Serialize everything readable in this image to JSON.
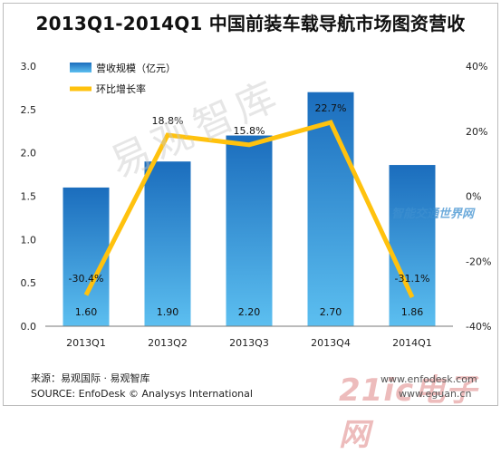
{
  "title": "2013Q1-2014Q1 中国前装车载导航市场图资营收",
  "chart_data": {
    "type": "bar",
    "categories": [
      "2013Q1",
      "2013Q2",
      "2013Q3",
      "2013Q4",
      "2014Q1"
    ],
    "series": [
      {
        "name": "营收规模（亿元）",
        "type": "bar",
        "axis": "left",
        "values": [
          1.6,
          1.9,
          2.2,
          2.7,
          1.86
        ],
        "labels": [
          "1.60",
          "1.90",
          "2.20",
          "2.70",
          "1.86"
        ]
      },
      {
        "name": "环比增长率",
        "type": "line",
        "axis": "right",
        "values": [
          -30.4,
          18.8,
          15.8,
          22.7,
          -31.1
        ],
        "labels": [
          "-30.4%",
          "18.8%",
          "15.8%",
          "22.7%",
          "-31.1%"
        ]
      }
    ],
    "y_left": {
      "min": 0,
      "max": 3.0,
      "ticks": [
        "0.0",
        "0.5",
        "1.0",
        "1.5",
        "2.0",
        "2.5",
        "3.0"
      ]
    },
    "y_right": {
      "min": -40,
      "max": 40,
      "ticks": [
        "-40%",
        "-20%",
        "0%",
        "20%",
        "40%"
      ]
    },
    "legend_position": "top-left",
    "colors": {
      "bar_top": "#1b6dbd",
      "bar_bottom": "#5cbff0",
      "line": "#ffc20e"
    }
  },
  "source": {
    "cn": "来源：易观国际 · 易观智库",
    "en": "SOURCE: EnfoDesk © Analysys International"
  },
  "watermarks": {
    "center": "易观智库",
    "site_logo": "智能交通世界网",
    "site": "21ic电子网",
    "url1": "www.enfodesk.com",
    "url2": "www.eguan.cn"
  }
}
